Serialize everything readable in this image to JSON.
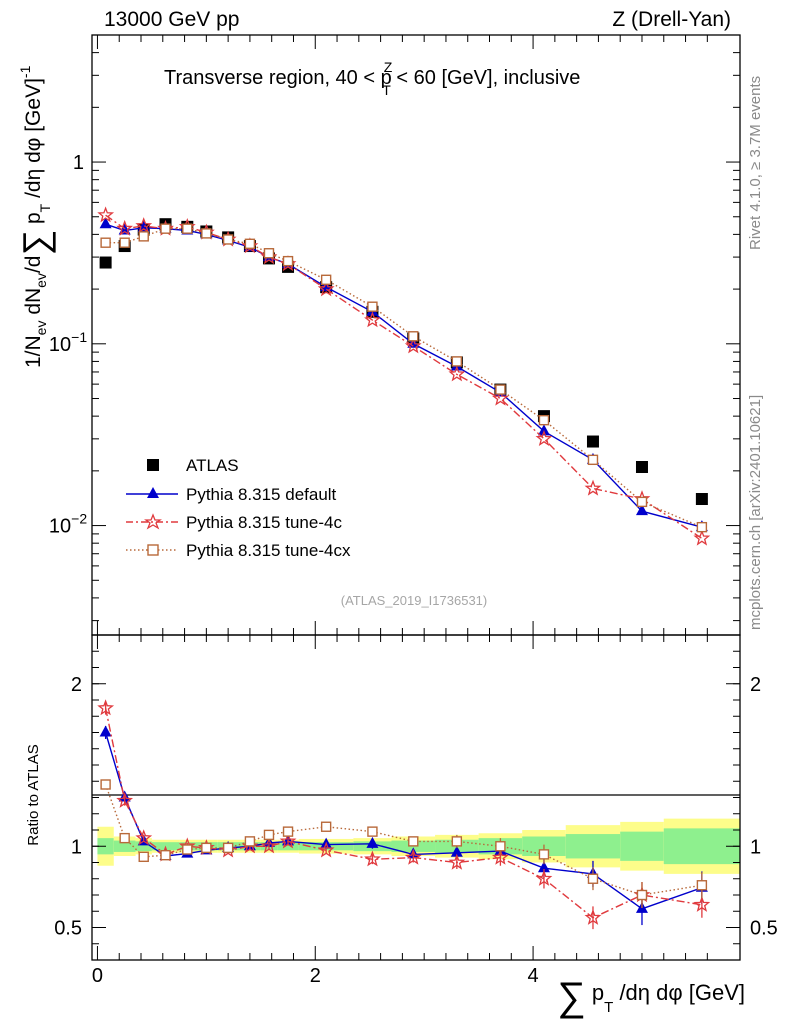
{
  "header": {
    "left_label": "13000 GeV pp",
    "right_label": "Z (Drell-Yan)"
  },
  "side_labels": {
    "rivet": "Rivet 4.1.0, ≥ 3.7M events",
    "mcplots": "mcplots.cern.ch [arXiv:2401.10621]"
  },
  "watermark": "(ATLAS_2019_I1736531)",
  "chart_data": [
    {
      "type": "scatter",
      "name": "main",
      "title": "Transverse region, 40 < p_T^Z < 60 [GeV], inclusive",
      "title_parts": {
        "a": "Transverse region, 40 < p",
        "sub": "T",
        "sup": "Z",
        "b": " < 60 [GeV], inclusive"
      },
      "ylabel": "1/N_ev dN_ev/d∑p_T/dη dφ [GeV]^-1",
      "ylabel_parts": {
        "a": "1/N",
        "ev1": "ev",
        "b": " dN",
        "ev2": "ev",
        "c": "/d",
        "sum": "∑",
        "d": " p",
        "t": "T",
        "e": " /dη dφ  [GeV]",
        "exp": "-1"
      },
      "yscale": "log",
      "ylim": [
        0.0025,
        5.0
      ],
      "xlim": [
        -0.05,
        5.9
      ],
      "y_ticks": [
        {
          "value": 0.01,
          "base": "10",
          "exp": "−2"
        },
        {
          "value": 0.1,
          "base": "10",
          "exp": "−1"
        },
        {
          "value": 1,
          "base": "1",
          "exp": ""
        }
      ],
      "series": [
        {
          "name": "ATLAS",
          "x": [
            0.075,
            0.25,
            0.425,
            0.625,
            0.825,
            1.0,
            1.2,
            1.4,
            1.575,
            1.75,
            2.1,
            2.525,
            2.9,
            3.3,
            3.7,
            4.1,
            4.55,
            5.0,
            5.55
          ],
          "y": [
            0.28,
            0.345,
            0.425,
            0.455,
            0.44,
            0.415,
            0.385,
            0.345,
            0.295,
            0.265,
            0.205,
            0.15,
            0.107,
            0.079,
            0.056,
            0.04,
            0.029,
            0.021,
            0.014
          ]
        },
        {
          "name": "Pythia 8.315 default",
          "x": [
            0.075,
            0.25,
            0.425,
            0.625,
            0.825,
            1.0,
            1.2,
            1.4,
            1.575,
            1.75,
            2.1,
            2.525,
            2.9,
            3.3,
            3.7,
            4.1,
            4.55,
            5.0,
            5.55
          ],
          "y": [
            0.455,
            0.42,
            0.435,
            0.43,
            0.42,
            0.4,
            0.37,
            0.34,
            0.3,
            0.275,
            0.205,
            0.15,
            0.1,
            0.075,
            0.054,
            0.033,
            0.023,
            0.012,
            0.0098
          ]
        },
        {
          "name": "Pythia 8.315 tune-4c",
          "x": [
            0.075,
            0.25,
            0.425,
            0.625,
            0.825,
            1.0,
            1.2,
            1.4,
            1.575,
            1.75,
            2.1,
            2.525,
            2.9,
            3.3,
            3.7,
            4.1,
            4.55,
            5.0,
            5.55
          ],
          "y": [
            0.51,
            0.43,
            0.445,
            0.43,
            0.44,
            0.41,
            0.375,
            0.345,
            0.3,
            0.275,
            0.2,
            0.135,
            0.097,
            0.068,
            0.05,
            0.03,
            0.016,
            0.014,
            0.0085
          ]
        },
        {
          "name": "Pythia 8.315 tune-4cx",
          "x": [
            0.075,
            0.25,
            0.425,
            0.625,
            0.825,
            1.0,
            1.2,
            1.4,
            1.575,
            1.75,
            2.1,
            2.525,
            2.9,
            3.3,
            3.7,
            4.1,
            4.55,
            5.0,
            5.55
          ],
          "y": [
            0.36,
            0.36,
            0.39,
            0.43,
            0.43,
            0.405,
            0.375,
            0.355,
            0.315,
            0.285,
            0.225,
            0.16,
            0.11,
            0.08,
            0.056,
            0.038,
            0.023,
            0.0135,
            0.0098
          ]
        }
      ],
      "legend": [
        "ATLAS",
        "Pythia 8.315 default",
        "Pythia 8.315 tune-4c",
        "Pythia 8.315 tune-4cx"
      ],
      "legend_position": "bottom-left"
    },
    {
      "type": "scatter",
      "name": "ratio",
      "ylabel": "Ratio to ATLAS",
      "xlabel": "∑p_T/dη dφ [GeV]",
      "xlabel_parts": {
        "sum": "∑",
        "a": " p",
        "t": "T",
        "b": " /dη dφ [GeV]"
      },
      "ylim": [
        0.3,
        2.3
      ],
      "xlim": [
        -0.05,
        5.9
      ],
      "y_ticks": [
        {
          "value": 0.5,
          "label": "0.5"
        },
        {
          "value": 1,
          "label": "1"
        },
        {
          "value": 2,
          "label": "2"
        }
      ],
      "x_ticks": [
        {
          "value": 0,
          "label": "0"
        },
        {
          "value": 2,
          "label": "2"
        },
        {
          "value": 4,
          "label": "4"
        }
      ],
      "bands": {
        "edges": [
          0.0,
          0.15,
          0.35,
          0.5,
          0.75,
          0.9,
          1.1,
          1.3,
          1.5,
          1.65,
          1.85,
          2.35,
          2.7,
          3.1,
          3.5,
          3.9,
          4.3,
          4.8,
          5.2,
          5.9
        ],
        "green_halfwidth": [
          0.05,
          0.035,
          0.03,
          0.025,
          0.025,
          0.025,
          0.025,
          0.025,
          0.025,
          0.025,
          0.025,
          0.03,
          0.035,
          0.04,
          0.05,
          0.06,
          0.075,
          0.09,
          0.11
        ],
        "yellow_halfwidth": [
          0.12,
          0.06,
          0.05,
          0.04,
          0.04,
          0.04,
          0.04,
          0.04,
          0.04,
          0.04,
          0.045,
          0.05,
          0.06,
          0.07,
          0.08,
          0.1,
          0.13,
          0.15,
          0.17
        ]
      },
      "series": [
        {
          "name": "Pythia 8.315 default",
          "x": [
            0.075,
            0.25,
            0.425,
            0.625,
            0.825,
            1.0,
            1.2,
            1.4,
            1.575,
            1.75,
            2.1,
            2.525,
            2.9,
            3.3,
            3.7,
            4.1,
            4.55,
            5.0,
            5.55
          ],
          "y": [
            1.7,
            1.3,
            1.03,
            0.94,
            0.955,
            0.975,
            0.99,
            1.0,
            1.02,
            1.03,
            1.01,
            1.015,
            0.95,
            0.96,
            0.97,
            0.865,
            0.83,
            0.615,
            0.745
          ],
          "err": [
            0.04,
            0.03,
            0.02,
            0.02,
            0.02,
            0.02,
            0.02,
            0.02,
            0.02,
            0.02,
            0.02,
            0.03,
            0.03,
            0.04,
            0.05,
            0.06,
            0.08,
            0.1,
            0.1
          ]
        },
        {
          "name": "Pythia 8.315 tune-4c",
          "x": [
            0.075,
            0.25,
            0.425,
            0.625,
            0.825,
            1.0,
            1.2,
            1.4,
            1.575,
            1.75,
            2.1,
            2.525,
            2.9,
            3.3,
            3.7,
            4.1,
            4.55,
            5.0,
            5.55
          ],
          "y": [
            1.85,
            1.28,
            1.05,
            0.95,
            1.0,
            0.99,
            0.975,
            1.0,
            1.0,
            1.03,
            0.975,
            0.92,
            0.93,
            0.9,
            0.93,
            0.8,
            0.56,
            0.7,
            0.64
          ],
          "err": [
            0.04,
            0.03,
            0.02,
            0.02,
            0.02,
            0.02,
            0.02,
            0.02,
            0.02,
            0.02,
            0.02,
            0.03,
            0.03,
            0.04,
            0.05,
            0.06,
            0.07,
            0.08,
            0.08
          ]
        },
        {
          "name": "Pythia 8.315 tune-4cx",
          "x": [
            0.075,
            0.25,
            0.425,
            0.625,
            0.825,
            1.0,
            1.2,
            1.4,
            1.575,
            1.75,
            2.1,
            2.525,
            2.9,
            3.3,
            3.7,
            4.1,
            4.55,
            5.0,
            5.55
          ],
          "y": [
            1.38,
            1.05,
            0.935,
            0.945,
            0.98,
            0.99,
            0.99,
            1.03,
            1.07,
            1.09,
            1.12,
            1.09,
            1.03,
            1.03,
            1.0,
            0.95,
            0.8,
            0.7,
            0.76
          ],
          "err": [
            0.03,
            0.02,
            0.02,
            0.02,
            0.02,
            0.02,
            0.02,
            0.02,
            0.02,
            0.02,
            0.02,
            0.03,
            0.03,
            0.04,
            0.05,
            0.06,
            0.07,
            0.08,
            0.08
          ]
        }
      ]
    }
  ],
  "colors": {
    "atlas": "#000000",
    "default": "#0000cc",
    "tune4c": "#e03a3e",
    "tune4cx": "#b8693a",
    "band_inner": "#8ef08e",
    "band_outer": "#fdfd8a"
  }
}
